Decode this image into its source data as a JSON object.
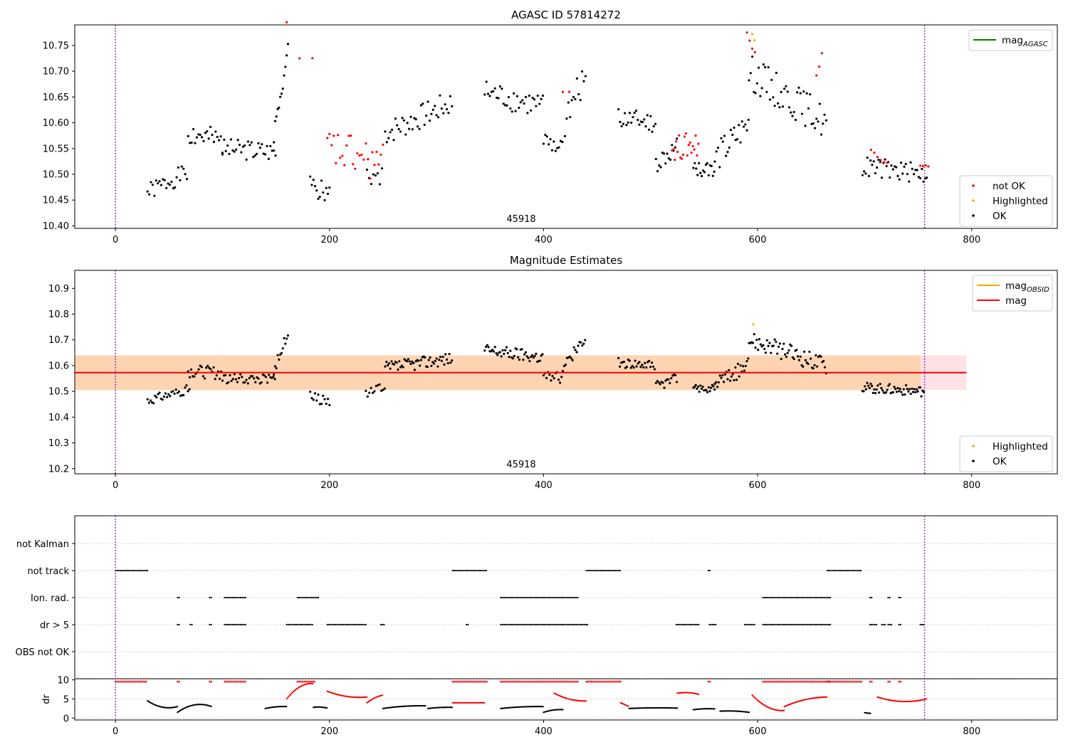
{
  "colors": {
    "ok": "#000000",
    "not_ok": "#ff0000",
    "highlighted": "#ffa500",
    "mag_agasc": "#008000",
    "mag_obsid": "#ffa500",
    "mag": "#ff0000",
    "obs_line": "#800080"
  },
  "chart_data": [
    {
      "type": "scatter",
      "title": "AGASC ID 57814272",
      "annotation": "45918",
      "xlim": [
        -38,
        880
      ],
      "ylim": [
        10.395,
        10.79
      ],
      "xticks": [
        "0",
        "200",
        "400",
        "600",
        "800"
      ],
      "yticks": [
        "10.40",
        "10.45",
        "10.50",
        "10.55",
        "10.60",
        "10.65",
        "10.70",
        "10.75"
      ],
      "obs_boundaries": [
        0,
        756
      ],
      "legend_upper": [
        {
          "name": "mag",
          "sub": "AGASC",
          "color": "#008000"
        }
      ],
      "legend_lower": [
        {
          "name": "not OK",
          "color": "#ff0000"
        },
        {
          "name": "Highlighted",
          "color": "#ffa500"
        },
        {
          "name": "OK",
          "color": "#000000"
        }
      ],
      "series": [
        {
          "name": "OK",
          "color": "#000000",
          "segments": [
            {
              "x0": 30,
              "x1": 68,
              "y0": 10.465,
              "y1": 10.505,
              "amp": 0.018,
              "step": 1.6,
              "seed": 1
            },
            {
              "x0": 68,
              "x1": 100,
              "y0": 10.58,
              "y1": 10.56,
              "amp": 0.025,
              "step": 1.6,
              "seed": 2
            },
            {
              "x0": 100,
              "x1": 150,
              "y0": 10.55,
              "y1": 10.545,
              "amp": 0.02,
              "step": 1.6,
              "seed": 3
            },
            {
              "x0": 148,
              "x1": 162,
              "y0": 10.58,
              "y1": 10.745,
              "amp": 0.02,
              "step": 1.2,
              "seed": 4
            },
            {
              "x0": 182,
              "x1": 200,
              "y0": 10.48,
              "y1": 10.46,
              "amp": 0.02,
              "step": 1.5,
              "seed": 5
            },
            {
              "x0": 235,
              "x1": 250,
              "y0": 10.5,
              "y1": 10.5,
              "amp": 0.02,
              "step": 2,
              "seed": 6
            },
            {
              "x0": 252,
              "x1": 315,
              "y0": 10.58,
              "y1": 10.64,
              "amp": 0.025,
              "step": 1.6,
              "seed": 7
            },
            {
              "x0": 345,
              "x1": 400,
              "y0": 10.66,
              "y1": 10.63,
              "amp": 0.025,
              "step": 1.6,
              "seed": 8
            },
            {
              "x0": 400,
              "x1": 418,
              "y0": 10.57,
              "y1": 10.55,
              "amp": 0.02,
              "step": 1.6,
              "seed": 9
            },
            {
              "x0": 420,
              "x1": 440,
              "y0": 10.6,
              "y1": 10.7,
              "amp": 0.03,
              "step": 1.6,
              "seed": 10
            },
            {
              "x0": 470,
              "x1": 505,
              "y0": 10.61,
              "y1": 10.6,
              "amp": 0.02,
              "step": 1.5,
              "seed": 11
            },
            {
              "x0": 505,
              "x1": 525,
              "y0": 10.52,
              "y1": 10.55,
              "amp": 0.02,
              "step": 1.5,
              "seed": 12
            },
            {
              "x0": 540,
              "x1": 560,
              "y0": 10.51,
              "y1": 10.51,
              "amp": 0.015,
              "step": 1.3,
              "seed": 13
            },
            {
              "x0": 560,
              "x1": 592,
              "y0": 10.53,
              "y1": 10.6,
              "amp": 0.03,
              "step": 1.5,
              "seed": 14
            },
            {
              "x0": 592,
              "x1": 665,
              "y0": 10.7,
              "y1": 10.6,
              "amp": 0.035,
              "step": 1.5,
              "seed": 15
            },
            {
              "x0": 698,
              "x1": 758,
              "y0": 10.515,
              "y1": 10.5,
              "amp": 0.02,
              "step": 1.5,
              "seed": 16
            }
          ]
        },
        {
          "name": "not OK",
          "color": "#ff0000",
          "segments": [
            {
              "x0": 160,
              "x1": 185,
              "y0": 10.77,
              "y1": 10.73,
              "amp": 0.03,
              "step": 12,
              "seed": 17
            },
            {
              "x0": 198,
              "x1": 250,
              "y0": 10.55,
              "y1": 10.52,
              "amp": 0.04,
              "step": 2,
              "seed": 18
            },
            {
              "x0": 418,
              "x1": 424,
              "y0": 10.66,
              "y1": 10.66,
              "amp": 0.0,
              "step": 6,
              "seed": 19
            },
            {
              "x0": 520,
              "x1": 545,
              "y0": 10.55,
              "y1": 10.56,
              "amp": 0.025,
              "step": 1.3,
              "seed": 20
            },
            {
              "x0": 590,
              "x1": 598,
              "y0": 10.78,
              "y1": 10.73,
              "amp": 0.01,
              "step": 2.5,
              "seed": 21
            },
            {
              "x0": 655,
              "x1": 662,
              "y0": 10.7,
              "y1": 10.75,
              "amp": 0.01,
              "step": 2.5,
              "seed": 22
            },
            {
              "x0": 706,
              "x1": 722,
              "y0": 10.53,
              "y1": 10.52,
              "amp": 0.02,
              "step": 3,
              "seed": 23
            },
            {
              "x0": 752,
              "x1": 760,
              "y0": 10.515,
              "y1": 10.515,
              "amp": 0.003,
              "step": 2.5,
              "seed": 24
            }
          ]
        },
        {
          "name": "Highlighted",
          "color": "#ffa500",
          "points": [
            [
              595,
              10.772
            ],
            [
              597,
              10.76
            ]
          ]
        }
      ]
    },
    {
      "type": "scatter",
      "title": "Magnitude Estimates",
      "annotation": "45918",
      "xlim": [
        -38,
        880
      ],
      "ylim": [
        10.18,
        10.97
      ],
      "xticks": [
        "0",
        "200",
        "400",
        "600",
        "800"
      ],
      "yticks": [
        "10.2",
        "10.3",
        "10.4",
        "10.5",
        "10.6",
        "10.7",
        "10.8",
        "10.9"
      ],
      "obs_boundaries": [
        0,
        756
      ],
      "mag": 10.573,
      "mag_band_outer": [
        10.505,
        10.64
      ],
      "mag_band_inner": [
        10.505,
        10.64
      ],
      "mag_line_x": [
        -38,
        795
      ],
      "legend_upper": [
        {
          "name": "mag",
          "sub": "OBSID",
          "color": "#ffa500"
        },
        {
          "name": "mag",
          "sub": "",
          "color": "#ff0000"
        }
      ],
      "legend_lower": [
        {
          "name": "Highlighted",
          "color": "#ffa500"
        },
        {
          "name": "OK",
          "color": "#000000"
        }
      ],
      "series": [
        {
          "name": "OK",
          "color": "#000000",
          "segments": [
            {
              "x0": 30,
              "x1": 70,
              "y0": 10.465,
              "y1": 10.51,
              "amp": 0.018,
              "step": 1.4,
              "seed": 31
            },
            {
              "x0": 68,
              "x1": 100,
              "y0": 10.58,
              "y1": 10.57,
              "amp": 0.025,
              "step": 1.4,
              "seed": 32
            },
            {
              "x0": 100,
              "x1": 150,
              "y0": 10.55,
              "y1": 10.545,
              "amp": 0.02,
              "step": 1.4,
              "seed": 33
            },
            {
              "x0": 148,
              "x1": 162,
              "y0": 10.58,
              "y1": 10.74,
              "amp": 0.02,
              "step": 1.2,
              "seed": 34
            },
            {
              "x0": 182,
              "x1": 200,
              "y0": 10.48,
              "y1": 10.46,
              "amp": 0.02,
              "step": 1.5,
              "seed": 35
            },
            {
              "x0": 234,
              "x1": 252,
              "y0": 10.49,
              "y1": 10.52,
              "amp": 0.02,
              "step": 1.6,
              "seed": 36
            },
            {
              "x0": 252,
              "x1": 315,
              "y0": 10.59,
              "y1": 10.63,
              "amp": 0.025,
              "step": 1.2,
              "seed": 37
            },
            {
              "x0": 345,
              "x1": 400,
              "y0": 10.66,
              "y1": 10.63,
              "amp": 0.025,
              "step": 1.2,
              "seed": 38
            },
            {
              "x0": 400,
              "x1": 418,
              "y0": 10.57,
              "y1": 10.55,
              "amp": 0.02,
              "step": 1.4,
              "seed": 39
            },
            {
              "x0": 418,
              "x1": 440,
              "y0": 10.6,
              "y1": 10.71,
              "amp": 0.03,
              "step": 1.3,
              "seed": 40
            },
            {
              "x0": 470,
              "x1": 505,
              "y0": 10.61,
              "y1": 10.6,
              "amp": 0.02,
              "step": 1.3,
              "seed": 41
            },
            {
              "x0": 505,
              "x1": 525,
              "y0": 10.52,
              "y1": 10.55,
              "amp": 0.02,
              "step": 1.3,
              "seed": 42
            },
            {
              "x0": 540,
              "x1": 560,
              "y0": 10.51,
              "y1": 10.51,
              "amp": 0.015,
              "step": 1.1,
              "seed": 43
            },
            {
              "x0": 560,
              "x1": 592,
              "y0": 10.53,
              "y1": 10.6,
              "amp": 0.03,
              "step": 1.2,
              "seed": 44
            },
            {
              "x0": 592,
              "x1": 665,
              "y0": 10.7,
              "y1": 10.6,
              "amp": 0.035,
              "step": 1.2,
              "seed": 45
            },
            {
              "x0": 698,
              "x1": 756,
              "y0": 10.515,
              "y1": 10.5,
              "amp": 0.02,
              "step": 1.1,
              "seed": 46
            }
          ]
        },
        {
          "name": "Highlighted",
          "color": "#ffa500",
          "points": [
            [
              596,
              10.76
            ]
          ]
        }
      ]
    },
    {
      "type": "scatter",
      "title": "",
      "xlim": [
        -38,
        880
      ],
      "xticks": [
        "0",
        "200",
        "400",
        "600",
        "800"
      ],
      "obs_boundaries": [
        0,
        756
      ],
      "flag_labels": [
        "not Kalman",
        "not track",
        "Ion. rad.",
        "dr > 5",
        "OBS not OK"
      ],
      "flags": {
        "not track": [
          [
            0,
            30
          ],
          [
            315,
            347
          ],
          [
            440,
            472
          ],
          [
            554,
            556
          ],
          [
            665,
            697
          ]
        ],
        "Ion. rad.": [
          [
            58,
            60
          ],
          [
            88,
            90
          ],
          [
            102,
            122
          ],
          [
            170,
            190
          ],
          [
            360,
            432
          ],
          [
            605,
            668
          ],
          [
            705,
            707
          ],
          [
            722,
            724
          ],
          [
            732,
            734
          ]
        ],
        "dr > 5": [
          [
            58,
            60
          ],
          [
            70,
            72
          ],
          [
            88,
            90
          ],
          [
            102,
            122
          ],
          [
            160,
            185
          ],
          [
            198,
            235
          ],
          [
            248,
            252
          ],
          [
            328,
            330
          ],
          [
            360,
            442
          ],
          [
            524,
            545
          ],
          [
            555,
            562
          ],
          [
            588,
            597
          ],
          [
            605,
            668
          ],
          [
            705,
            712
          ],
          [
            716,
            720
          ],
          [
            722,
            726
          ],
          [
            732,
            734
          ],
          [
            752,
            756
          ]
        ]
      },
      "ylabel": "dr",
      "dr_ylim": [
        -0.5,
        10.3
      ],
      "dr_yticks": [
        "0",
        "5",
        "10"
      ],
      "dr_capped": [
        [
          0,
          30
        ],
        [
          58,
          60
        ],
        [
          88,
          90
        ],
        [
          102,
          122
        ],
        [
          170,
          186
        ],
        [
          315,
          347
        ],
        [
          360,
          432
        ],
        [
          440,
          472
        ],
        [
          554,
          556
        ],
        [
          605,
          668
        ],
        [
          665,
          697
        ],
        [
          705,
          707
        ],
        [
          722,
          724
        ],
        [
          732,
          734
        ]
      ],
      "dr_segments_black": [
        {
          "x0": 30,
          "x1": 58,
          "y0": 4.5,
          "y1": 3.0,
          "curve": -1.5
        },
        {
          "x0": 58,
          "x1": 90,
          "y0": 1.5,
          "y1": 3.0,
          "curve": 2.0
        },
        {
          "x0": 140,
          "x1": 160,
          "y0": 2.5,
          "y1": 3.0,
          "curve": 0.3
        },
        {
          "x0": 185,
          "x1": 198,
          "y0": 2.8,
          "y1": 2.6,
          "curve": 0.3
        },
        {
          "x0": 250,
          "x1": 290,
          "y0": 2.5,
          "y1": 3.2,
          "curve": 0.4
        },
        {
          "x0": 292,
          "x1": 315,
          "y0": 2.5,
          "y1": 2.8,
          "curve": 0.2
        },
        {
          "x0": 360,
          "x1": 400,
          "y0": 2.5,
          "y1": 3.0,
          "curve": 0.3
        },
        {
          "x0": 400,
          "x1": 418,
          "y0": 1.5,
          "y1": 2.2,
          "curve": 0.4
        },
        {
          "x0": 480,
          "x1": 525,
          "y0": 2.5,
          "y1": 2.6,
          "curve": 0.2
        },
        {
          "x0": 540,
          "x1": 560,
          "y0": 2.2,
          "y1": 2.4,
          "curve": 0.2
        },
        {
          "x0": 565,
          "x1": 592,
          "y0": 1.8,
          "y1": 1.5,
          "curve": 0.3
        },
        {
          "x0": 700,
          "x1": 706,
          "y0": 1.4,
          "y1": 1.2,
          "curve": 0.0
        }
      ],
      "dr_segments_red": [
        {
          "x0": 160,
          "x1": 185,
          "y0": 5.0,
          "y1": 9.0,
          "curve": 2.0
        },
        {
          "x0": 198,
          "x1": 235,
          "y0": 7.0,
          "y1": 5.5,
          "curve": -1.0
        },
        {
          "x0": 235,
          "x1": 250,
          "y0": 4.0,
          "y1": 6.0,
          "curve": 0.5
        },
        {
          "x0": 315,
          "x1": 345,
          "y0": 4.0,
          "y1": 4.0,
          "curve": 0.0
        },
        {
          "x0": 410,
          "x1": 440,
          "y0": 6.5,
          "y1": 4.5,
          "curve": -1.0
        },
        {
          "x0": 472,
          "x1": 480,
          "y0": 4.0,
          "y1": 3.0,
          "curve": 0.0
        },
        {
          "x0": 525,
          "x1": 545,
          "y0": 6.5,
          "y1": 6.2,
          "curve": 0.5
        },
        {
          "x0": 595,
          "x1": 625,
          "y0": 6.0,
          "y1": 2.0,
          "curve": -2.0
        },
        {
          "x0": 625,
          "x1": 665,
          "y0": 3.0,
          "y1": 5.5,
          "curve": 1.0
        },
        {
          "x0": 712,
          "x1": 758,
          "y0": 5.5,
          "y1": 5.0,
          "curve": -1.5
        }
      ]
    }
  ]
}
